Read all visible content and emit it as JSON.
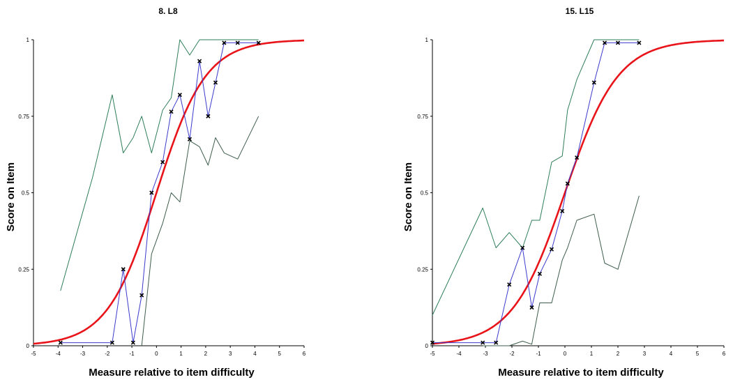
{
  "chart_data": [
    {
      "type": "line",
      "title": "8. L8",
      "xlabel": "Measure relative to item difficulty",
      "ylabel": "Score on Item",
      "xlim": [
        -5,
        6
      ],
      "ylim": [
        0,
        1
      ],
      "xticks": [
        "-5",
        "-4",
        "-3",
        "-2",
        "-1",
        "0",
        "1",
        "2",
        "3",
        "4",
        "5",
        "6"
      ],
      "yticks": [
        "0",
        "0.25",
        "0.5",
        "0.75",
        "1"
      ],
      "grid": false,
      "colors": {
        "model": "#e8141a",
        "empirical": "#3a3acc",
        "upper": "#2e7d5a",
        "lower": "#3d5c4c"
      },
      "model_curve": {
        "name": "Model ICC",
        "function": "logistic",
        "difficulty": 0
      },
      "series": [
        {
          "role": "empirical",
          "x": [
            -3.9,
            -1.8,
            -1.35,
            -0.95,
            -0.6,
            -0.2,
            0.25,
            0.6,
            0.95,
            1.35,
            1.75,
            2.1,
            2.4,
            2.75,
            3.3,
            4.15
          ],
          "y": [
            0.01,
            0.01,
            0.25,
            0.01,
            0.165,
            0.5,
            0.6,
            0.765,
            0.82,
            0.675,
            0.93,
            0.75,
            0.86,
            0.99,
            0.99,
            0.99
          ]
        },
        {
          "role": "upper",
          "x": [
            -3.9,
            -2.6,
            -1.8,
            -1.35,
            -0.95,
            -0.6,
            -0.2,
            0.25,
            0.6,
            0.95,
            1.35,
            1.75,
            2.1,
            2.4,
            2.75,
            3.3,
            4.15
          ],
          "y": [
            0.18,
            0.55,
            0.82,
            0.63,
            0.68,
            0.75,
            0.63,
            0.77,
            0.81,
            1.0,
            0.95,
            1.0,
            1.0,
            1.0,
            1.0,
            1.0,
            1.0
          ]
        },
        {
          "role": "lower",
          "x": [
            -0.6,
            -0.2,
            0.25,
            0.6,
            0.95,
            1.35,
            1.75,
            2.1,
            2.4,
            2.75,
            3.3,
            4.15
          ],
          "y": [
            0.0,
            0.3,
            0.4,
            0.5,
            0.47,
            0.67,
            0.65,
            0.59,
            0.68,
            0.63,
            0.61,
            0.75
          ]
        }
      ]
    },
    {
      "type": "line",
      "title": "15. L15",
      "xlabel": "Measure relative to item difficulty",
      "ylabel": "Score on Item",
      "xlim": [
        -5,
        6
      ],
      "ylim": [
        0,
        1
      ],
      "xticks": [
        "-5",
        "-4",
        "-3",
        "-2",
        "-1",
        "0",
        "1",
        "2",
        "3",
        "4",
        "5",
        "6"
      ],
      "yticks": [
        "0",
        "0.25",
        "0.5",
        "0.75",
        "1"
      ],
      "grid": false,
      "colors": {
        "model": "#e8141a",
        "empirical": "#3a3acc",
        "upper": "#2e7d5a",
        "lower": "#3d5c4c"
      },
      "model_curve": {
        "name": "Model ICC",
        "function": "logistic",
        "difficulty": 0
      },
      "series": [
        {
          "role": "empirical",
          "x": [
            -5.0,
            -3.1,
            -2.6,
            -2.1,
            -1.6,
            -1.25,
            -0.95,
            -0.5,
            -0.1,
            0.1,
            0.45,
            1.1,
            1.5,
            2.0,
            2.8
          ],
          "y": [
            0.01,
            0.01,
            0.01,
            0.2,
            0.32,
            0.125,
            0.235,
            0.315,
            0.44,
            0.53,
            0.615,
            0.86,
            0.99,
            0.99,
            0.99
          ]
        },
        {
          "role": "upper",
          "x": [
            -5.0,
            -3.1,
            -2.6,
            -2.1,
            -1.6,
            -1.25,
            -0.95,
            -0.5,
            -0.1,
            0.1,
            0.45,
            1.1,
            1.5,
            2.0,
            2.8
          ],
          "y": [
            0.1,
            0.45,
            0.32,
            0.37,
            0.32,
            0.41,
            0.41,
            0.6,
            0.62,
            0.77,
            0.87,
            1.0,
            1.0,
            1.0,
            1.0
          ]
        },
        {
          "role": "lower",
          "x": [
            -3.1,
            -2.6,
            -2.1,
            -1.6,
            -1.25,
            -0.95,
            -0.5,
            -0.1,
            0.1,
            0.45,
            1.1,
            1.5,
            2.0,
            2.8
          ],
          "y": [
            0.0,
            0.0,
            0.0,
            0.015,
            0.005,
            0.14,
            0.14,
            0.28,
            0.32,
            0.41,
            0.43,
            0.27,
            0.25,
            0.49
          ]
        }
      ]
    }
  ]
}
